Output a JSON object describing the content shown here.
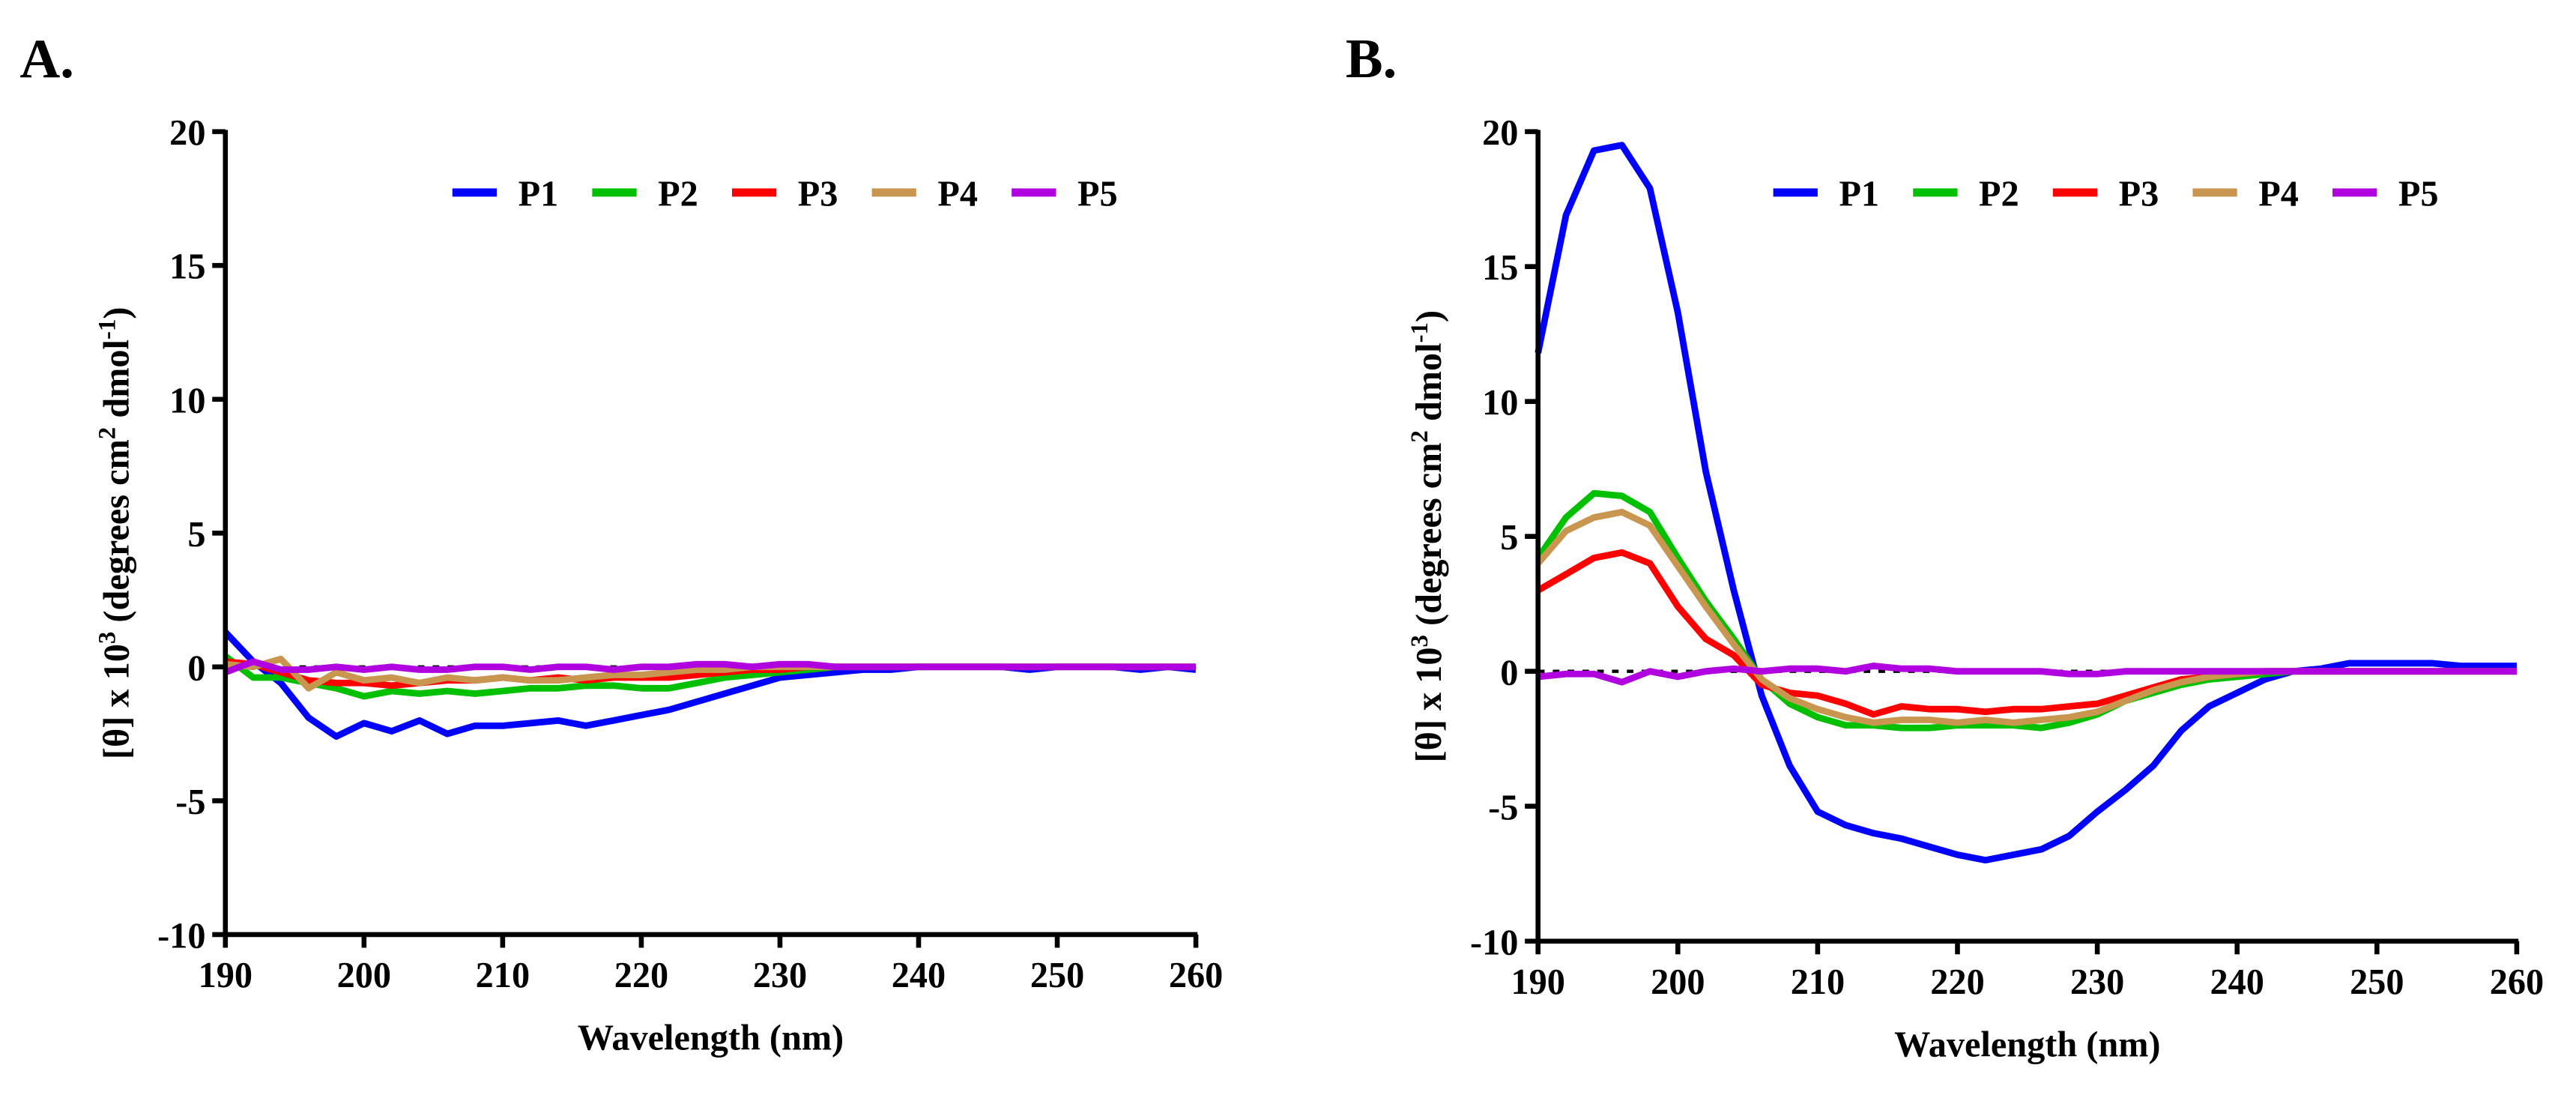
{
  "chart_data": [
    {
      "type": "line",
      "panel_label": "A.",
      "xlabel": "Wavelength (nm)",
      "ylabel": {
        "base": "[θ] x 10",
        "exp1": "3",
        "mid": " (degrees cm",
        "exp2": "2",
        "mid2": " dmol",
        "exp3": "-1",
        "end": ")"
      },
      "xlim": [
        190,
        260
      ],
      "ylim": [
        -10,
        20
      ],
      "xticks": [
        190,
        200,
        210,
        220,
        230,
        240,
        250,
        260
      ],
      "yticks": [
        -10,
        -5,
        0,
        5,
        10,
        15,
        20
      ],
      "zero_line": "dotted",
      "legend_position": "top-center",
      "x": [
        190,
        192,
        194,
        196,
        198,
        200,
        202,
        204,
        206,
        208,
        210,
        212,
        214,
        216,
        218,
        220,
        222,
        224,
        226,
        228,
        230,
        232,
        234,
        236,
        238,
        240,
        242,
        244,
        246,
        248,
        250,
        252,
        254,
        256,
        258,
        260
      ],
      "series": [
        {
          "name": "P1",
          "color": "#0000ff",
          "values": [
            1.3,
            0.2,
            -0.6,
            -1.9,
            -2.6,
            -2.1,
            -2.4,
            -2.0,
            -2.5,
            -2.2,
            -2.2,
            -2.1,
            -2.0,
            -2.2,
            -2.0,
            -1.8,
            -1.6,
            -1.3,
            -1.0,
            -0.7,
            -0.4,
            -0.3,
            -0.2,
            -0.1,
            -0.1,
            0,
            0,
            0,
            0,
            -0.1,
            0,
            0,
            0,
            -0.1,
            0,
            -0.1
          ]
        },
        {
          "name": "P2",
          "color": "#00c000",
          "values": [
            0.4,
            -0.4,
            -0.4,
            -0.6,
            -0.8,
            -1.1,
            -0.9,
            -1.0,
            -0.9,
            -1.0,
            -0.9,
            -0.8,
            -0.8,
            -0.7,
            -0.7,
            -0.8,
            -0.8,
            -0.6,
            -0.4,
            -0.3,
            -0.2,
            -0.1,
            0,
            0,
            0,
            0,
            0,
            0,
            0,
            0,
            0,
            0,
            0,
            0,
            0,
            0
          ]
        },
        {
          "name": "P3",
          "color": "#ff0000",
          "values": [
            0.2,
            0.1,
            -0.2,
            -0.5,
            -0.6,
            -0.6,
            -0.7,
            -0.6,
            -0.5,
            -0.5,
            -0.4,
            -0.5,
            -0.4,
            -0.5,
            -0.4,
            -0.4,
            -0.4,
            -0.3,
            -0.2,
            -0.1,
            -0.1,
            0,
            0,
            0,
            0,
            0,
            0,
            0,
            0,
            0,
            0,
            0,
            0,
            0,
            0,
            0
          ]
        },
        {
          "name": "P4",
          "color": "#c8964f",
          "values": [
            0.1,
            0.0,
            0.3,
            -0.8,
            -0.2,
            -0.5,
            -0.4,
            -0.6,
            -0.4,
            -0.5,
            -0.4,
            -0.5,
            -0.5,
            -0.4,
            -0.3,
            -0.3,
            -0.2,
            -0.1,
            -0.1,
            0,
            0,
            0,
            0,
            0,
            0,
            0,
            0,
            0,
            0,
            0,
            0,
            0,
            0,
            0,
            0,
            0
          ]
        },
        {
          "name": "P5",
          "color": "#b000e0",
          "values": [
            -0.2,
            0.2,
            -0.1,
            -0.1,
            0.0,
            -0.1,
            0.0,
            -0.1,
            -0.1,
            0.0,
            0.0,
            -0.1,
            0.0,
            0.0,
            -0.1,
            0.0,
            0.0,
            0.1,
            0.1,
            0.0,
            0.1,
            0.1,
            0.0,
            0,
            0,
            0,
            0,
            0,
            0,
            0,
            0,
            0,
            0,
            0,
            0,
            0
          ]
        }
      ]
    },
    {
      "type": "line",
      "panel_label": "B.",
      "xlabel": "Wavelength (nm)",
      "ylabel": {
        "base": "[θ] x 10",
        "exp1": "3",
        "mid": " (degrees cm",
        "exp2": "2",
        "mid2": " dmol",
        "exp3": "-1",
        "end": ")"
      },
      "xlim": [
        190,
        260
      ],
      "ylim": [
        -10,
        20
      ],
      "xticks": [
        190,
        200,
        210,
        220,
        230,
        240,
        250,
        260
      ],
      "yticks": [
        -10,
        -5,
        0,
        5,
        10,
        15,
        20
      ],
      "zero_line": "dotted",
      "legend_position": "top-center",
      "x": [
        190,
        192,
        194,
        196,
        198,
        200,
        202,
        204,
        206,
        208,
        210,
        212,
        214,
        216,
        218,
        220,
        222,
        224,
        226,
        228,
        230,
        232,
        234,
        236,
        238,
        240,
        242,
        244,
        246,
        248,
        250,
        252,
        254,
        256,
        258,
        260
      ],
      "series": [
        {
          "name": "P1",
          "color": "#0000ff",
          "values": [
            11.8,
            16.9,
            19.3,
            19.5,
            17.9,
            13.3,
            7.4,
            3.0,
            -0.9,
            -3.5,
            -5.2,
            -5.7,
            -6.0,
            -6.2,
            -6.5,
            -6.8,
            -7.0,
            -6.8,
            -6.6,
            -6.1,
            -5.2,
            -4.4,
            -3.5,
            -2.2,
            -1.3,
            -0.8,
            -0.3,
            0.0,
            0.1,
            0.3,
            0.3,
            0.3,
            0.3,
            0.2,
            0.2,
            0.2
          ]
        },
        {
          "name": "P2",
          "color": "#00c000",
          "values": [
            4.2,
            5.7,
            6.6,
            6.5,
            5.9,
            4.2,
            2.6,
            1.2,
            -0.3,
            -1.2,
            -1.7,
            -2.0,
            -2.0,
            -2.1,
            -2.1,
            -2.0,
            -2.0,
            -2.0,
            -2.1,
            -1.9,
            -1.6,
            -1.1,
            -0.8,
            -0.5,
            -0.3,
            -0.2,
            -0.1,
            0,
            0,
            0,
            0,
            0,
            0,
            0,
            0,
            0
          ]
        },
        {
          "name": "P3",
          "color": "#ff0000",
          "values": [
            3.0,
            3.6,
            4.2,
            4.4,
            4.0,
            2.4,
            1.2,
            0.6,
            -0.5,
            -0.8,
            -0.9,
            -1.2,
            -1.6,
            -1.3,
            -1.4,
            -1.4,
            -1.5,
            -1.4,
            -1.4,
            -1.3,
            -1.2,
            -0.9,
            -0.6,
            -0.3,
            -0.2,
            -0.1,
            0,
            0,
            0,
            0,
            0,
            0,
            0,
            0,
            0,
            0
          ]
        },
        {
          "name": "P4",
          "color": "#c8964f",
          "values": [
            4.0,
            5.2,
            5.7,
            5.9,
            5.4,
            3.9,
            2.4,
            1.0,
            -0.3,
            -1.0,
            -1.4,
            -1.7,
            -1.9,
            -1.8,
            -1.8,
            -1.9,
            -1.8,
            -1.9,
            -1.8,
            -1.7,
            -1.5,
            -1.1,
            -0.7,
            -0.4,
            -0.2,
            -0.1,
            0,
            0,
            0,
            0,
            0,
            0,
            0,
            0,
            0,
            0
          ]
        },
        {
          "name": "P5",
          "color": "#b000e0",
          "values": [
            -0.2,
            -0.1,
            -0.1,
            -0.4,
            0.0,
            -0.2,
            0.0,
            0.1,
            0.0,
            0.1,
            0.1,
            0.0,
            0.2,
            0.1,
            0.1,
            0.0,
            0.0,
            0.0,
            0.0,
            -0.1,
            -0.1,
            0.0,
            0.0,
            0.0,
            0.0,
            0.0,
            0,
            0,
            0,
            0,
            0,
            0,
            0,
            0,
            0,
            0
          ]
        }
      ]
    }
  ]
}
